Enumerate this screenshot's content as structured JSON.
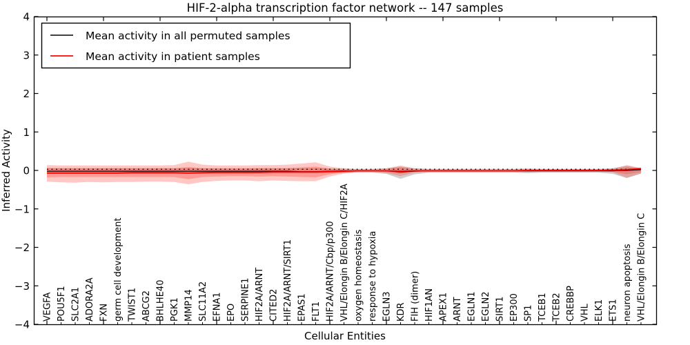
{
  "title": "HIF-2-alpha transcription factor network -- 147 samples",
  "axes": {
    "xlabel": "Cellular Entities",
    "ylabel": "Inferred Activity",
    "y_tick_labels": [
      "4",
      "3",
      "2",
      "1",
      "0",
      "−1",
      "−2",
      "−3",
      "−4"
    ],
    "y_tick_values": [
      4,
      3,
      2,
      1,
      0,
      -1,
      -2,
      -3,
      -4
    ]
  },
  "legend": {
    "entries": [
      {
        "label": "Mean activity in all permuted samples",
        "color": "#000000"
      },
      {
        "label": "Mean activity in patient samples",
        "color": "#ff0000"
      }
    ]
  },
  "colors": {
    "patient_line": "#ff0000",
    "permuted_line": "#000000",
    "patient_band": "#ff3b30",
    "permuted_band": "#8a8a8a",
    "spine": "#000000"
  },
  "chart_data": {
    "type": "line",
    "title": "HIF-2-alpha transcription factor network -- 147 samples",
    "xlabel": "Cellular Entities",
    "ylabel": "Inferred Activity",
    "ylim": [
      -4,
      4
    ],
    "grid": false,
    "legend_position": "upper left",
    "x_major_tick_every": 4,
    "categories": [
      "VEGFA",
      "POU5F1",
      "SLC2A1",
      "ADORA2A",
      "FXN",
      "germ cell development",
      "TWIST1",
      "ABCG2",
      "BHLHE40",
      "PGK1",
      "MMP14",
      "SLC11A2",
      "EFNA1",
      "EPO",
      "SERPINE1",
      "HIF2A/ARNT",
      "CITED2",
      "HIF2A/ARNT/SIRT1",
      "EPAS1",
      "FLT1",
      "HIF2A/ARNT/Cbp/p300",
      "VHL/Elongin B/Elongin C/HIF2A",
      "oxygen homeostasis",
      "response to hypoxia",
      "EGLN3",
      "KDR",
      "FIH (dimer)",
      "HIF1AN",
      "APEX1",
      "ARNT",
      "EGLN1",
      "EGLN2",
      "SIRT1",
      "EP300",
      "SP1",
      "TCEB1",
      "TCEB2",
      "CREBBP",
      "VHL",
      "ELK1",
      "ETS1",
      "neuron apoptosis",
      "VHL/Elongin B/Elongin C"
    ],
    "series": [
      {
        "name": "Mean activity in all permuted samples",
        "color": "#000000",
        "linestyle": "solid",
        "width": 1.2,
        "values": [
          -0.02,
          -0.02,
          -0.02,
          -0.02,
          -0.02,
          -0.02,
          -0.02,
          -0.02,
          -0.02,
          -0.02,
          -0.02,
          -0.02,
          -0.02,
          -0.02,
          -0.02,
          -0.02,
          -0.02,
          -0.02,
          -0.03,
          -0.03,
          -0.02,
          -0.01,
          -0.01,
          -0.01,
          -0.01,
          -0.04,
          -0.02,
          -0.01,
          -0.01,
          -0.01,
          -0.01,
          -0.01,
          -0.01,
          -0.01,
          -0.01,
          -0.01,
          -0.01,
          -0.01,
          -0.01,
          -0.01,
          -0.01,
          0.0,
          0.02
        ]
      },
      {
        "name": "Permuted samples upper bound (dotted)",
        "color": "#000000",
        "linestyle": "dotted",
        "width": 1.4,
        "values": [
          0.03,
          0.03,
          0.03,
          0.03,
          0.03,
          0.03,
          0.03,
          0.03,
          0.03,
          0.03,
          0.03,
          0.03,
          0.03,
          0.03,
          0.03,
          0.03,
          0.03,
          0.03,
          0.03,
          0.03,
          0.03,
          0.03,
          0.03,
          0.03,
          0.03,
          0.03,
          0.03,
          0.03,
          0.03,
          0.03,
          0.03,
          0.03,
          0.03,
          0.03,
          0.03,
          0.03,
          0.03,
          0.03,
          0.03,
          0.03,
          0.03,
          0.03,
          0.03
        ]
      },
      {
        "name": "Mean activity in patient samples",
        "color": "#ff0000",
        "linestyle": "solid",
        "width": 1.8,
        "values": [
          -0.07,
          -0.07,
          -0.07,
          -0.07,
          -0.07,
          -0.07,
          -0.06,
          -0.06,
          -0.06,
          -0.06,
          -0.07,
          -0.06,
          -0.05,
          -0.05,
          -0.05,
          -0.05,
          -0.04,
          -0.04,
          -0.04,
          -0.04,
          -0.03,
          -0.02,
          -0.01,
          -0.01,
          -0.01,
          -0.02,
          -0.01,
          -0.01,
          -0.01,
          -0.01,
          -0.01,
          -0.01,
          -0.01,
          -0.01,
          0.0,
          0.0,
          0.0,
          0.0,
          0.0,
          0.0,
          0.01,
          0.02,
          0.05
        ]
      }
    ],
    "bands": [
      {
        "name": "permuted-range",
        "color": "#8a8a8a",
        "opacity": 0.4,
        "upper": [
          0.06,
          0.06,
          0.06,
          0.06,
          0.06,
          0.06,
          0.06,
          0.06,
          0.06,
          0.06,
          0.06,
          0.06,
          0.06,
          0.06,
          0.06,
          0.06,
          0.06,
          0.06,
          0.06,
          0.06,
          0.05,
          0.05,
          0.04,
          0.04,
          0.06,
          0.1,
          0.06,
          0.04,
          0.04,
          0.04,
          0.04,
          0.04,
          0.04,
          0.04,
          0.05,
          0.04,
          0.04,
          0.04,
          0.04,
          0.04,
          0.06,
          0.12,
          0.06
        ],
        "lower": [
          -0.08,
          -0.08,
          -0.08,
          -0.08,
          -0.08,
          -0.08,
          -0.08,
          -0.08,
          -0.08,
          -0.08,
          -0.08,
          -0.08,
          -0.08,
          -0.08,
          -0.08,
          -0.08,
          -0.08,
          -0.08,
          -0.08,
          -0.08,
          -0.07,
          -0.07,
          -0.06,
          -0.06,
          -0.09,
          -0.22,
          -0.1,
          -0.06,
          -0.06,
          -0.06,
          -0.06,
          -0.06,
          -0.06,
          -0.06,
          -0.07,
          -0.06,
          -0.06,
          -0.06,
          -0.06,
          -0.06,
          -0.09,
          -0.2,
          -0.08
        ]
      },
      {
        "name": "patient-outer-range",
        "color": "#ff3b30",
        "opacity": 0.28,
        "upper": [
          0.14,
          0.13,
          0.13,
          0.13,
          0.13,
          0.13,
          0.13,
          0.13,
          0.13,
          0.14,
          0.23,
          0.15,
          0.13,
          0.13,
          0.13,
          0.14,
          0.14,
          0.15,
          0.18,
          0.21,
          0.1,
          0.05,
          0.03,
          0.03,
          0.05,
          0.13,
          0.05,
          0.03,
          0.03,
          0.03,
          0.03,
          0.03,
          0.03,
          0.03,
          0.04,
          0.03,
          0.03,
          0.03,
          0.03,
          0.03,
          0.04,
          0.14,
          0.06
        ],
        "lower": [
          -0.29,
          -0.31,
          -0.32,
          -0.3,
          -0.31,
          -0.3,
          -0.3,
          -0.29,
          -0.29,
          -0.3,
          -0.36,
          -0.3,
          -0.27,
          -0.26,
          -0.26,
          -0.28,
          -0.26,
          -0.27,
          -0.28,
          -0.28,
          -0.16,
          -0.08,
          -0.04,
          -0.04,
          -0.07,
          -0.15,
          -0.06,
          -0.04,
          -0.04,
          -0.04,
          -0.04,
          -0.04,
          -0.04,
          -0.04,
          -0.05,
          -0.04,
          -0.04,
          -0.04,
          -0.04,
          -0.04,
          -0.05,
          -0.19,
          -0.08
        ]
      },
      {
        "name": "patient-inner-range",
        "color": "#ff3b30",
        "opacity": 0.32,
        "upper": [
          0.07,
          0.06,
          0.06,
          0.06,
          0.06,
          0.06,
          0.06,
          0.06,
          0.06,
          0.06,
          0.09,
          0.06,
          0.05,
          0.05,
          0.05,
          0.06,
          0.06,
          0.06,
          0.08,
          0.1,
          0.05,
          0.02,
          0.02,
          0.02,
          0.03,
          0.08,
          0.02,
          0.02,
          0.02,
          0.02,
          0.02,
          0.02,
          0.02,
          0.02,
          0.02,
          0.02,
          0.02,
          0.02,
          0.02,
          0.02,
          0.02,
          0.08,
          0.04
        ],
        "lower": [
          -0.18,
          -0.17,
          -0.17,
          -0.17,
          -0.17,
          -0.17,
          -0.17,
          -0.17,
          -0.17,
          -0.17,
          -0.23,
          -0.17,
          -0.16,
          -0.15,
          -0.15,
          -0.16,
          -0.15,
          -0.16,
          -0.17,
          -0.18,
          -0.1,
          -0.05,
          -0.02,
          -0.02,
          -0.04,
          -0.09,
          -0.03,
          -0.02,
          -0.02,
          -0.02,
          -0.02,
          -0.02,
          -0.02,
          -0.02,
          -0.03,
          -0.02,
          -0.02,
          -0.02,
          -0.02,
          -0.02,
          -0.03,
          -0.1,
          -0.04
        ]
      }
    ]
  }
}
